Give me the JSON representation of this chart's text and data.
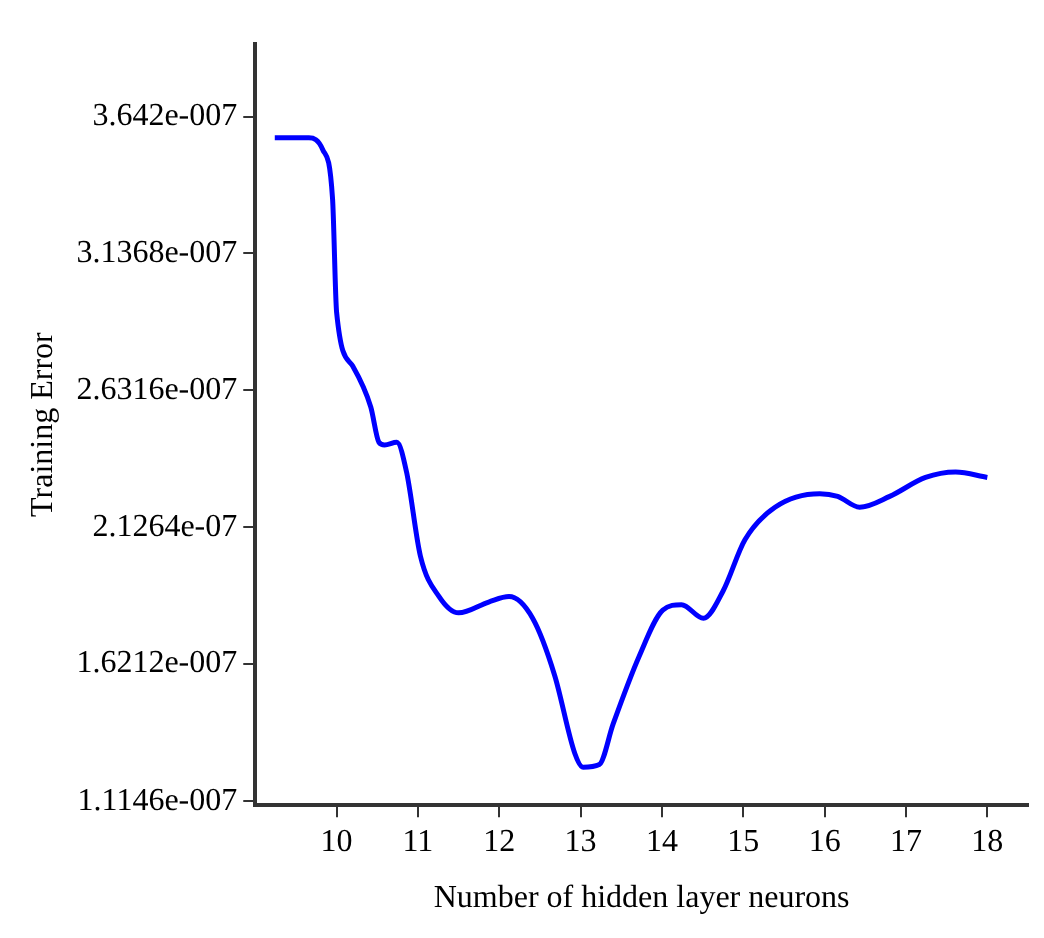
{
  "chart_data": {
    "type": "line",
    "xlabel": "Number of hidden layer neurons",
    "ylabel": "Training Error",
    "x": [
      9.24,
      9.66,
      9.83,
      9.95,
      10.0,
      10.2,
      10.42,
      10.52,
      10.59,
      10.74,
      10.86,
      11.03,
      11.26,
      11.5,
      11.87,
      12.12,
      12.41,
      12.68,
      12.93,
      13.03,
      13.23,
      13.4,
      13.72,
      14.01,
      14.24,
      14.51,
      14.75,
      15.02,
      15.39,
      15.94,
      16.16,
      16.43,
      16.8,
      17.24,
      17.61,
      18.0
    ],
    "series": [
      {
        "color": "#0000ff",
        "values": [
          3.564e-07,
          3.564e-07,
          3.52e-07,
          3.34e-07,
          2.92e-07,
          2.72e-07,
          2.57e-07,
          2.44e-07,
          2.43e-07,
          2.44e-07,
          2.33e-07,
          2.02e-07,
          1.87e-07,
          1.81e-07,
          1.85e-07,
          1.87e-07,
          1.79e-07,
          1.58e-07,
          1.29e-07,
          1.24e-07,
          1.25e-07,
          1.4e-07,
          1.65e-07,
          1.82e-07,
          1.84e-07,
          1.79e-07,
          1.89e-07,
          2.08e-07,
          2.2e-07,
          2.25e-07,
          2.24e-07,
          2.2e-07,
          2.24e-07,
          2.31e-07,
          2.33e-07,
          2.31e-07
        ]
      }
    ],
    "xlim": [
      9.0,
      18.5
    ],
    "xticks": [
      10,
      11,
      12,
      13,
      14,
      15,
      16,
      17,
      18
    ],
    "ylim": [
      1.1e-07,
      3.91e-07
    ],
    "yticks": [
      {
        "value": 1.1146e-07,
        "label": "1.1146e-007"
      },
      {
        "value": 1.6212e-07,
        "label": "1.6212e-007"
      },
      {
        "value": 2.1264e-07,
        "label": "2.1264e-07"
      },
      {
        "value": 2.6316e-07,
        "label": "2.6316e-007"
      },
      {
        "value": 3.1368e-07,
        "label": "3.1368e-007"
      },
      {
        "value": 3.642e-07,
        "label": "3.642e-007"
      }
    ],
    "grid": false,
    "legend": false,
    "marker": "none",
    "line_style": "solid"
  }
}
